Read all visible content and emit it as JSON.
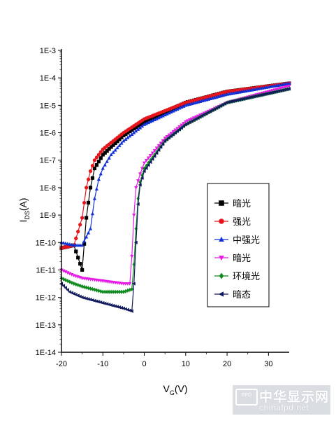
{
  "chart_data": {
    "type": "line",
    "title": "",
    "xlabel": {
      "main": "V",
      "sub": "G",
      "unit": "(V)"
    },
    "ylabel": {
      "main": "I",
      "sub": "DS",
      "unit": "(A)"
    },
    "xlim": [
      -20,
      35
    ],
    "ylim_exponent": [
      -14,
      -3
    ],
    "y_scale": "log",
    "xticks": [
      -20,
      -10,
      0,
      10,
      20,
      30
    ],
    "yticks": [
      "1E-14",
      "1E-13",
      "1E-12",
      "1E-11",
      "1E-10",
      "1E-9",
      "1E-8",
      "1E-7",
      "1E-6",
      "1E-5",
      "1E-4",
      "1E-3"
    ],
    "legend_position": "right",
    "series": [
      {
        "name": "暗光",
        "color": "#000000",
        "marker": "square",
        "x": [
          -20,
          -17,
          -15,
          -14,
          -13,
          -12,
          -10,
          -5,
          0,
          10,
          20,
          35
        ],
        "log10_y": [
          -10.2,
          -10.1,
          -11.0,
          -9.1,
          -8.0,
          -7.3,
          -6.8,
          -6.1,
          -5.6,
          -4.9,
          -4.5,
          -4.2
        ]
      },
      {
        "name": "强光",
        "color": "#e8141c",
        "marker": "circle",
        "x": [
          -20,
          -17,
          -16,
          -15,
          -14,
          -13,
          -12,
          -10,
          -5,
          0,
          10,
          20,
          35
        ],
        "log10_y": [
          -10.2,
          -10.1,
          -9.6,
          -9.1,
          -8.0,
          -7.4,
          -7.0,
          -6.6,
          -6.0,
          -5.5,
          -4.9,
          -4.5,
          -4.2
        ]
      },
      {
        "name": "中强光",
        "color": "#1230d8",
        "marker": "triangle-up",
        "x": [
          -20,
          -17,
          -15,
          -13,
          -12,
          -11,
          -10,
          -8,
          -5,
          0,
          10,
          20,
          35
        ],
        "log10_y": [
          -10.0,
          -10.1,
          -10.1,
          -9.5,
          -8.4,
          -7.7,
          -7.3,
          -6.8,
          -6.3,
          -5.7,
          -5.0,
          -4.6,
          -4.2
        ]
      },
      {
        "name": "暗光",
        "color": "#e61ce6",
        "marker": "triangle-down",
        "x": [
          -20,
          -17,
          -15,
          -10,
          -5,
          -3.5,
          -3,
          -2.5,
          -2,
          -1,
          0,
          5,
          10,
          20,
          35
        ],
        "log10_y": [
          -11.0,
          -11.2,
          -11.3,
          -11.4,
          -11.5,
          -11.5,
          -10.5,
          -9.0,
          -8.0,
          -7.5,
          -7.1,
          -6.2,
          -5.6,
          -4.9,
          -4.3
        ]
      },
      {
        "name": "环境光",
        "color": "#0f8a1e",
        "marker": "diamond",
        "x": [
          -20,
          -17,
          -15,
          -10,
          -5,
          -3,
          -2.5,
          -2,
          -1.5,
          -1,
          0,
          5,
          10,
          20,
          35
        ],
        "log10_y": [
          -11.3,
          -11.5,
          -11.6,
          -11.8,
          -11.8,
          -11.7,
          -10.8,
          -9.5,
          -8.4,
          -7.8,
          -7.3,
          -6.3,
          -5.7,
          -4.9,
          -4.4
        ]
      },
      {
        "name": "暗态",
        "color": "#101a5c",
        "marker": "triangle-left",
        "x": [
          -20,
          -18,
          -15,
          -10,
          -5,
          -3,
          -2.5,
          -2,
          -1.5,
          -1,
          0,
          5,
          10,
          20,
          35
        ],
        "log10_y": [
          -11.5,
          -11.8,
          -12.0,
          -12.2,
          -12.4,
          -12.5,
          -11.5,
          -10.0,
          -8.6,
          -7.9,
          -7.4,
          -6.3,
          -5.7,
          -4.9,
          -4.4
        ]
      }
    ]
  },
  "watermark": {
    "badge": "FPD",
    "title": "中华显示网",
    "url": "chinafpd.net"
  }
}
